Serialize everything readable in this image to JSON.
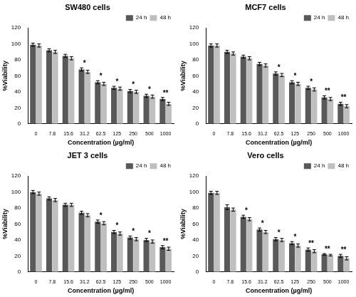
{
  "chart_data": [
    {
      "type": "bar",
      "title": "SW480 cells",
      "x_label": "Concentration (µg/ml)",
      "y_label": "%Viability",
      "categories": [
        "0",
        "7.8",
        "15.6",
        "31.2",
        "62.5",
        "125",
        "250",
        "500",
        "1000"
      ],
      "series": [
        {
          "name": "24 h",
          "color": "#595959",
          "values": [
            99,
            92,
            85,
            68,
            52,
            45,
            41,
            35,
            31
          ],
          "errors": [
            2,
            2,
            2,
            2,
            2,
            2,
            2,
            2,
            2
          ]
        },
        {
          "name": "48 h",
          "color": "#bfbfbf",
          "values": [
            98,
            90,
            82,
            65,
            50,
            44,
            40,
            34,
            25
          ],
          "errors": [
            2,
            2,
            2,
            2,
            2,
            2,
            2,
            2,
            2
          ]
        }
      ],
      "annotations": [
        null,
        null,
        null,
        "*",
        "*",
        "*",
        "*",
        "*",
        "**"
      ],
      "ylim": [
        0,
        120
      ],
      "yticks": [
        0,
        20,
        40,
        60,
        80,
        100,
        120
      ],
      "grid": false,
      "legend": "top right"
    },
    {
      "type": "bar",
      "title": "MCF7 cells",
      "x_label": "Concentration (µg/ml)",
      "y_label": "%Viability",
      "categories": [
        "0",
        "7.8",
        "15.6",
        "31.2",
        "62.5",
        "125",
        "250",
        "500",
        "1000"
      ],
      "series": [
        {
          "name": "24 h",
          "color": "#595959",
          "values": [
            98,
            90,
            84,
            75,
            63,
            52,
            45,
            33,
            25
          ],
          "errors": [
            2,
            2,
            2,
            2,
            2,
            2,
            2,
            2,
            2
          ]
        },
        {
          "name": "48 h",
          "color": "#bfbfbf",
          "values": [
            98,
            88,
            82,
            73,
            61,
            50,
            43,
            31,
            22
          ],
          "errors": [
            2,
            2,
            2,
            2,
            2,
            2,
            2,
            2,
            2
          ]
        }
      ],
      "annotations": [
        null,
        null,
        null,
        null,
        "*",
        "*",
        "*",
        "**",
        "**"
      ],
      "ylim": [
        0,
        120
      ],
      "yticks": [
        0,
        20,
        40,
        60,
        80,
        100,
        120
      ],
      "grid": false,
      "legend": "top right"
    },
    {
      "type": "bar",
      "title": "JET 3 cells",
      "x_label": "Concentration (µg/ml)",
      "y_label": "%Viability",
      "categories": [
        "0",
        "7.8",
        "15.6",
        "31.2",
        "62.5",
        "125",
        "250",
        "500",
        "1000"
      ],
      "series": [
        {
          "name": "24 h",
          "color": "#595959",
          "values": [
            100,
            92,
            84,
            74,
            63,
            50,
            43,
            40,
            31
          ],
          "errors": [
            2,
            2,
            2,
            2,
            2,
            2,
            2,
            2,
            2
          ]
        },
        {
          "name": "48 h",
          "color": "#bfbfbf",
          "values": [
            98,
            90,
            84,
            71,
            61,
            48,
            41,
            38,
            29
          ],
          "errors": [
            2,
            2,
            2,
            2,
            2,
            2,
            2,
            2,
            2
          ]
        }
      ],
      "annotations": [
        null,
        null,
        null,
        null,
        "*",
        "*",
        "*",
        "*",
        "**"
      ],
      "ylim": [
        0,
        120
      ],
      "yticks": [
        0,
        20,
        40,
        60,
        80,
        100,
        120
      ],
      "grid": false,
      "legend": "top right"
    },
    {
      "type": "bar",
      "title": "Vero cells",
      "x_label": "Concentration (µg/ml)",
      "y_label": "%Viability",
      "categories": [
        "0",
        "7.8",
        "15.6",
        "31.2",
        "62.5",
        "125",
        "250",
        "500",
        "1000"
      ],
      "series": [
        {
          "name": "24 h",
          "color": "#595959",
          "values": [
            99,
            81,
            69,
            53,
            41,
            36,
            28,
            22,
            20
          ],
          "errors": [
            2,
            3,
            2,
            2,
            2,
            2,
            2,
            1,
            2
          ]
        },
        {
          "name": "48 h",
          "color": "#bfbfbf",
          "values": [
            99,
            78,
            66,
            50,
            40,
            33,
            26,
            21,
            17
          ],
          "errors": [
            2,
            2,
            2,
            2,
            2,
            2,
            2,
            1,
            2
          ]
        }
      ],
      "annotations": [
        null,
        null,
        "*",
        "*",
        "*",
        "*",
        "**",
        "**",
        "**"
      ],
      "ylim": [
        0,
        120
      ],
      "yticks": [
        0,
        20,
        40,
        60,
        80,
        100,
        120
      ],
      "grid": false,
      "legend": "top right"
    }
  ]
}
